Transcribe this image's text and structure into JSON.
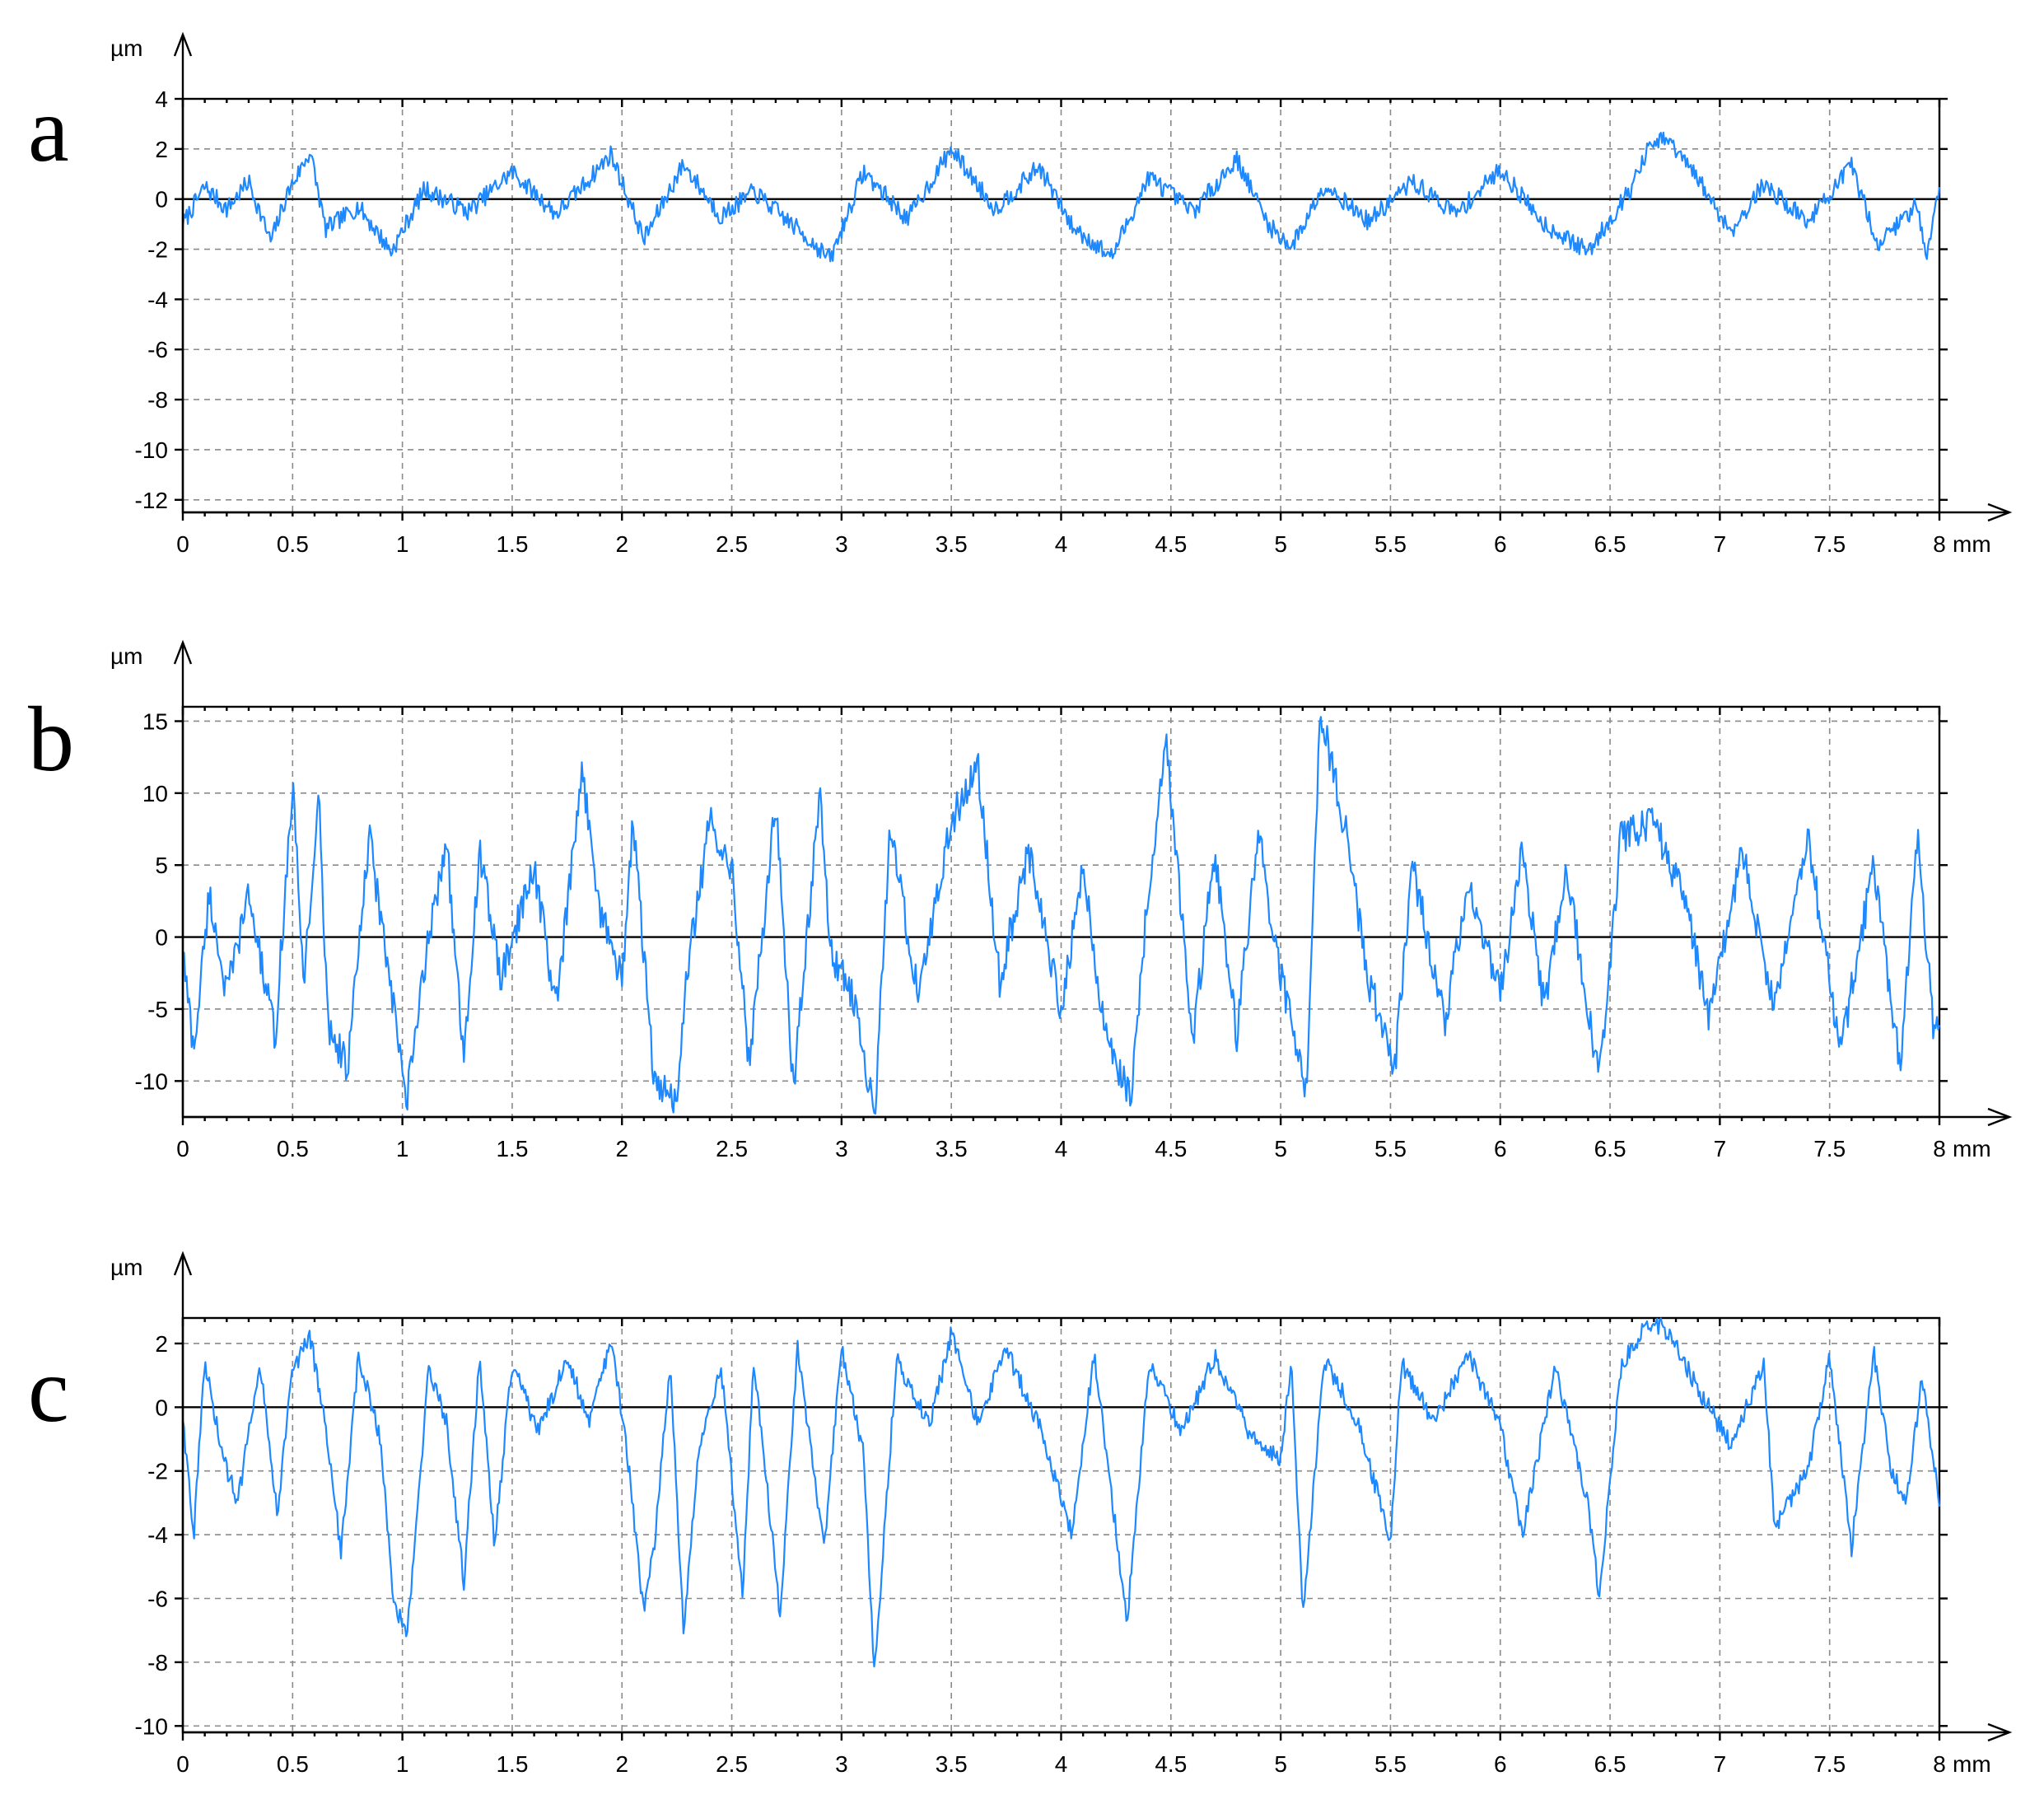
{
  "colors": {
    "trace": "#1e88ff",
    "axis": "#000000",
    "grid": "#8a8a8a"
  },
  "chart_data": [
    {
      "type": "line",
      "panel": "a",
      "ylabel": "µm",
      "xlabel": "mm",
      "xlim": [
        0,
        8
      ],
      "ylim": [
        -12.5,
        4
      ],
      "xticks": [
        0,
        0.5,
        1,
        1.5,
        2,
        2.5,
        3,
        3.5,
        4,
        4.5,
        5,
        5.5,
        6,
        6.5,
        7,
        7.5,
        8
      ],
      "xtick_labels": [
        "0",
        "0.5",
        "1",
        "1.5",
        "2",
        "2.5",
        "3",
        "3.5",
        "4",
        "4.5",
        "5",
        "5.5",
        "6",
        "6.5",
        "7",
        "7.5",
        "8"
      ],
      "yticks": [
        4,
        2,
        0,
        -2,
        -4,
        -6,
        -8,
        -10,
        -12
      ],
      "ytick_labels": [
        "4",
        "2",
        "0",
        "-2",
        "-4",
        "-6",
        "-8",
        "-10",
        "-12"
      ],
      "grid": true,
      "series": [
        {
          "x": [
            0,
            0.1,
            0.2,
            0.3,
            0.4,
            0.48,
            0.58,
            0.65,
            0.8,
            0.95,
            1.1,
            1.3,
            1.5,
            1.7,
            1.85,
            1.95,
            2.1,
            2.28,
            2.45,
            2.6,
            2.8,
            2.95,
            3.1,
            3.3,
            3.5,
            3.7,
            3.9,
            4.05,
            4.23,
            4.4,
            4.6,
            4.8,
            4.95,
            5.05,
            5.2,
            5.4,
            5.6,
            5.8,
            6.0,
            6.2,
            6.4,
            6.6,
            6.68,
            6.76,
            6.9,
            7.05,
            7.2,
            7.4,
            7.6,
            7.72,
            7.9,
            7.94,
            8.0
          ],
          "y": [
            -1,
            0.5,
            -0.4,
            0.7,
            -1.7,
            0.3,
            1.9,
            -1.2,
            -0.3,
            -2.1,
            0.4,
            -0.5,
            1.1,
            -0.6,
            0.8,
            1.8,
            -1.6,
            1.4,
            -0.7,
            0.3,
            -1.2,
            -2.4,
            1.1,
            -0.8,
            2.0,
            -0.4,
            1.3,
            -1.1,
            -2.3,
            0.9,
            -0.5,
            1.6,
            -1.1,
            -1.9,
            0.6,
            -0.9,
            0.7,
            -0.6,
            1.2,
            -1.0,
            -2.1,
            0.5,
            2.1,
            2.4,
            0.8,
            -1.3,
            0.6,
            -0.9,
            1.3,
            -1.8,
            -0.2,
            -2.2,
            0.4
          ]
        }
      ]
    },
    {
      "type": "line",
      "panel": "b",
      "ylabel": "µm",
      "xlabel": "mm",
      "xlim": [
        0,
        8
      ],
      "ylim": [
        -12.5,
        16
      ],
      "xticks": [
        0,
        0.5,
        1,
        1.5,
        2,
        2.5,
        3,
        3.5,
        4,
        4.5,
        5,
        5.5,
        6,
        6.5,
        7,
        7.5,
        8
      ],
      "xtick_labels": [
        "0",
        "0.5",
        "1",
        "1.5",
        "2",
        "2.5",
        "3",
        "3.5",
        "4",
        "4.5",
        "5",
        "5.5",
        "6",
        "6.5",
        "7",
        "7.5",
        "8"
      ],
      "yticks": [
        15,
        10,
        5,
        0,
        -5,
        -10
      ],
      "ytick_labels": [
        "15",
        "10",
        "5",
        "0",
        "-5",
        "-10"
      ],
      "grid": true,
      "series": [
        {
          "x": [
            0,
            0.05,
            0.12,
            0.2,
            0.3,
            0.42,
            0.5,
            0.55,
            0.62,
            0.66,
            0.75,
            0.85,
            0.95,
            1.02,
            1.1,
            1.2,
            1.28,
            1.35,
            1.45,
            1.6,
            1.7,
            1.82,
            1.9,
            2.0,
            2.05,
            2.15,
            2.25,
            2.3,
            2.4,
            2.5,
            2.58,
            2.7,
            2.78,
            2.9,
            2.95,
            3.05,
            3.15,
            3.22,
            3.35,
            3.5,
            3.62,
            3.72,
            3.85,
            4.0,
            4.1,
            4.2,
            4.32,
            4.4,
            4.48,
            4.6,
            4.7,
            4.8,
            4.9,
            4.95,
            5.05,
            5.12,
            5.18,
            5.3,
            5.4,
            5.52,
            5.6,
            5.75,
            5.85,
            6.0,
            6.1,
            6.2,
            6.3,
            6.45,
            6.55,
            6.7,
            6.85,
            6.95,
            7.1,
            7.25,
            7.4,
            7.55,
            7.7,
            7.82,
            7.9,
            7.97,
            8.0
          ],
          "y": [
            -1,
            -8,
            3,
            -4,
            3,
            -7,
            10.5,
            -3,
            9.5,
            -6,
            -9,
            7,
            -4,
            -11.5,
            -2,
            7,
            -9,
            6,
            -3,
            5,
            -5,
            11.5,
            2,
            -3,
            8,
            -10.5,
            -11.2,
            -2,
            8,
            5,
            -9,
            9.5,
            -10.5,
            10,
            -1,
            -4,
            -12.5,
            7.5,
            -4,
            8,
            12,
            -3,
            6,
            -5,
            5,
            -7,
            -11,
            4,
            13.5,
            -7,
            6,
            -7,
            8,
            1,
            -6,
            -11,
            16,
            7,
            -3,
            -9,
            5,
            -6,
            4,
            -4,
            6,
            -5,
            5,
            -10,
            7,
            8,
            2,
            -6,
            6,
            -5,
            7,
            -8,
            5,
            -9,
            7.2,
            -6,
            -6
          ]
        }
      ]
    },
    {
      "type": "line",
      "panel": "c",
      "ylabel": "µm",
      "xlabel": "mm",
      "xlim": [
        0,
        8
      ],
      "ylim": [
        -10.2,
        2.8
      ],
      "xticks": [
        0,
        0.5,
        1,
        1.5,
        2,
        2.5,
        3,
        3.5,
        4,
        4.5,
        5,
        5.5,
        6,
        6.5,
        7,
        7.5,
        8
      ],
      "xtick_labels": [
        "0",
        "0.5",
        "1",
        "1.5",
        "2",
        "2.5",
        "3",
        "3.5",
        "4",
        "4.5",
        "5",
        "5.5",
        "6",
        "6.5",
        "7",
        "7.5",
        "8"
      ],
      "yticks": [
        2,
        0,
        -2,
        -4,
        -6,
        -8,
        -10
      ],
      "ytick_labels": [
        "2",
        "0",
        "-2",
        "-4",
        "-6",
        "-8",
        "-10"
      ],
      "grid": true,
      "series": [
        {
          "x": [
            0,
            0.05,
            0.1,
            0.18,
            0.25,
            0.35,
            0.43,
            0.5,
            0.58,
            0.66,
            0.72,
            0.8,
            0.9,
            0.96,
            1.02,
            1.06,
            1.12,
            1.2,
            1.28,
            1.35,
            1.42,
            1.5,
            1.62,
            1.75,
            1.85,
            1.95,
            2.02,
            2.1,
            2.15,
            2.22,
            2.28,
            2.35,
            2.45,
            2.55,
            2.6,
            2.72,
            2.8,
            2.92,
            3.0,
            3.1,
            3.15,
            3.25,
            3.4,
            3.5,
            3.62,
            3.75,
            3.9,
            4.05,
            4.15,
            4.3,
            4.4,
            4.55,
            4.7,
            4.85,
            5.0,
            5.05,
            5.1,
            5.2,
            5.35,
            5.5,
            5.55,
            5.7,
            5.85,
            6.0,
            6.1,
            6.25,
            6.4,
            6.45,
            6.55,
            6.68,
            6.76,
            6.9,
            7.05,
            7.2,
            7.25,
            7.4,
            7.5,
            7.6,
            7.7,
            7.78,
            7.85,
            7.92,
            8.0
          ],
          "y": [
            -0.3,
            -4,
            1.4,
            -1.5,
            -3,
            1.5,
            -3.3,
            1.2,
            2.2,
            -1,
            -4.6,
            1.6,
            -1,
            -6,
            -7.3,
            -4,
            1.2,
            -0.5,
            -5.5,
            1.5,
            -4.3,
            1.4,
            -0.8,
            1.6,
            -0.5,
            2.1,
            -1.2,
            -6.5,
            -4.2,
            1.5,
            -7,
            -1.3,
            1.3,
            -5.8,
            1.5,
            -6.5,
            1.8,
            -4.5,
            1.8,
            -1.5,
            -8.4,
            1.5,
            -0.6,
            2.3,
            -0.5,
            1.8,
            -0.6,
            -4,
            1.7,
            -6.7,
            1.4,
            -0.8,
            1.6,
            -0.7,
            -1.7,
            1.4,
            -6.5,
            1.5,
            -0.4,
            -4.2,
            1.4,
            -0.5,
            1.7,
            -0.6,
            -4,
            1.2,
            -3,
            -5.9,
            1.3,
            2.7,
            2.4,
            0.6,
            -1.2,
            1.3,
            -3.8,
            -2,
            1.6,
            -4.4,
            1.8,
            -2,
            -3,
            0.9,
            -3
          ]
        }
      ]
    }
  ]
}
